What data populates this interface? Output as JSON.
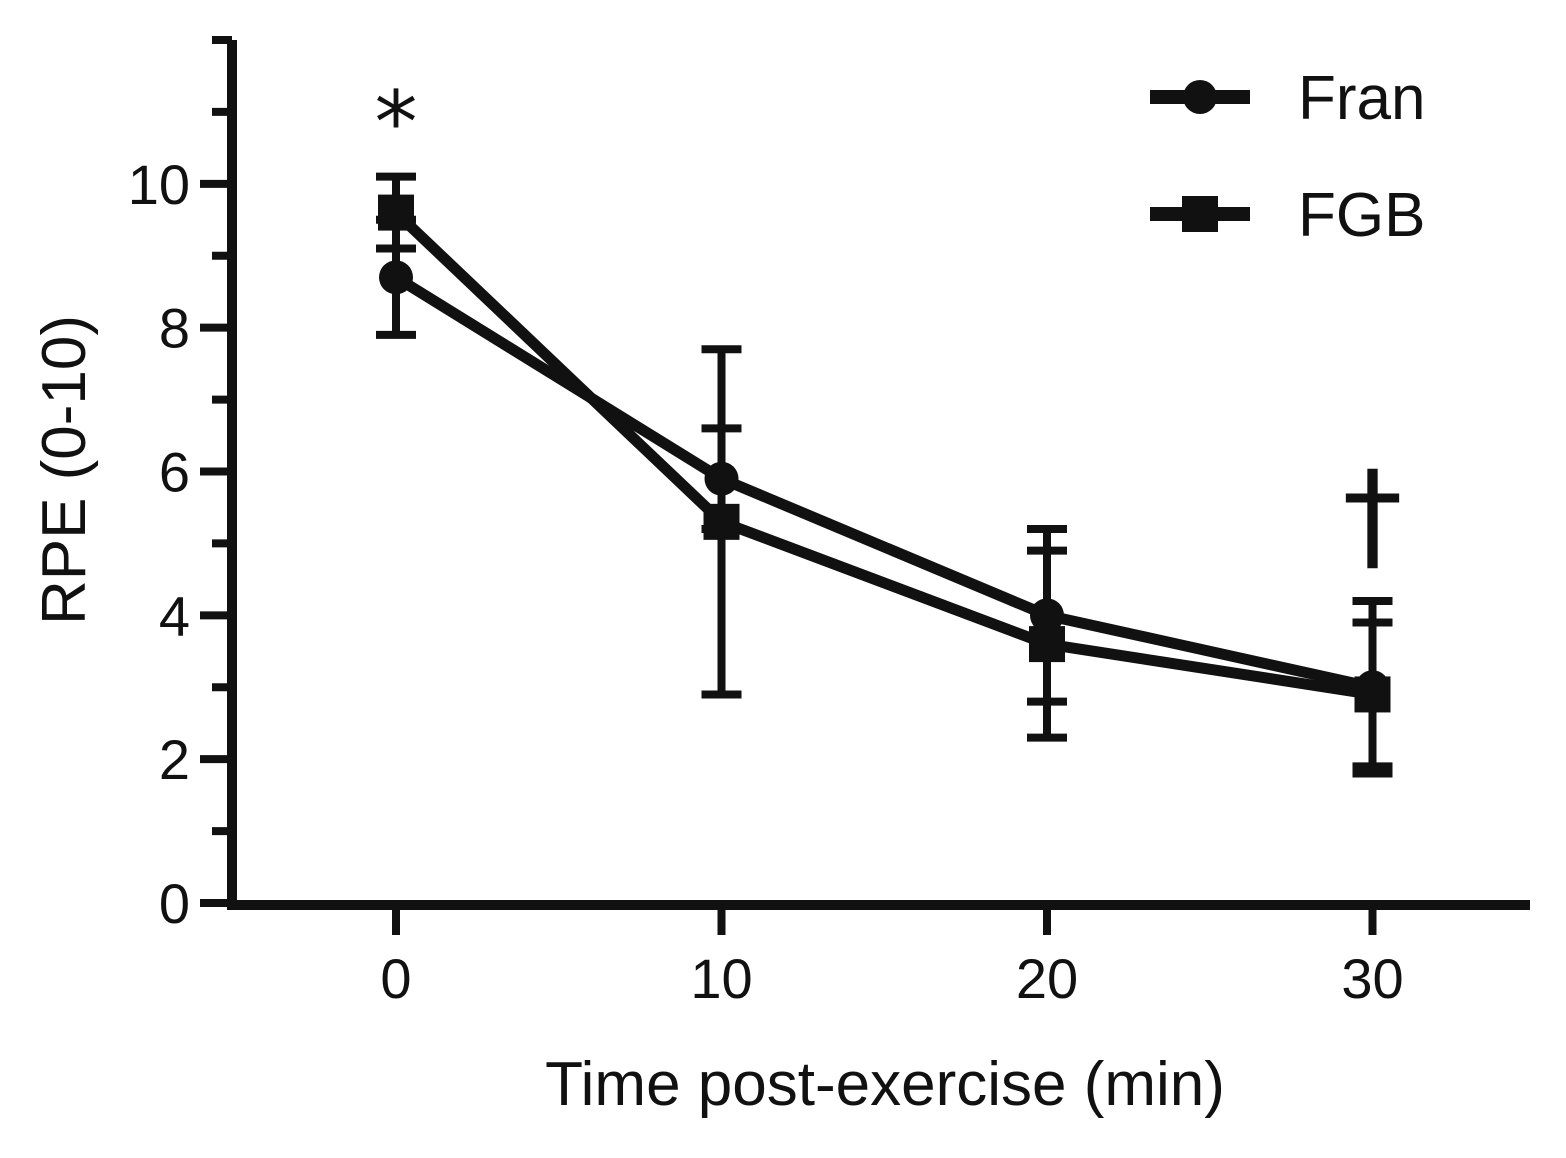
{
  "chart_data": {
    "type": "line",
    "title": "",
    "xlabel": "Time post-exercise (min)",
    "ylabel": "RPE (0-10)",
    "xlim": [
      -5,
      35
    ],
    "ylim": [
      0,
      12
    ],
    "x_ticks": [
      0,
      10,
      20,
      30
    ],
    "x_tick_labels": [
      "0",
      "10",
      "20",
      "30"
    ],
    "y_ticks": [
      0,
      2,
      4,
      6,
      8,
      10
    ],
    "y_tick_labels": [
      "0",
      "2",
      "4",
      "6",
      "8",
      "10"
    ],
    "y_minor_ticks": [
      1,
      3,
      5,
      7,
      9,
      11,
      12
    ],
    "x": [
      0,
      10,
      20,
      30
    ],
    "series": [
      {
        "name": "Fran",
        "marker": "circle",
        "values": [
          8.7,
          5.9,
          4.0,
          3.0
        ],
        "error": [
          0.8,
          0.7,
          1.2,
          1.2
        ]
      },
      {
        "name": "FGB",
        "marker": "square",
        "values": [
          9.6,
          5.3,
          3.6,
          2.9
        ],
        "error": [
          0.5,
          2.4,
          1.3,
          1.0
        ]
      }
    ],
    "legend_position": "top-right",
    "annotations": [
      {
        "text": "*",
        "x": 0,
        "y": 11.0
      },
      {
        "text": "†",
        "x": 30,
        "y": 5.4
      }
    ],
    "color": "#111111"
  }
}
